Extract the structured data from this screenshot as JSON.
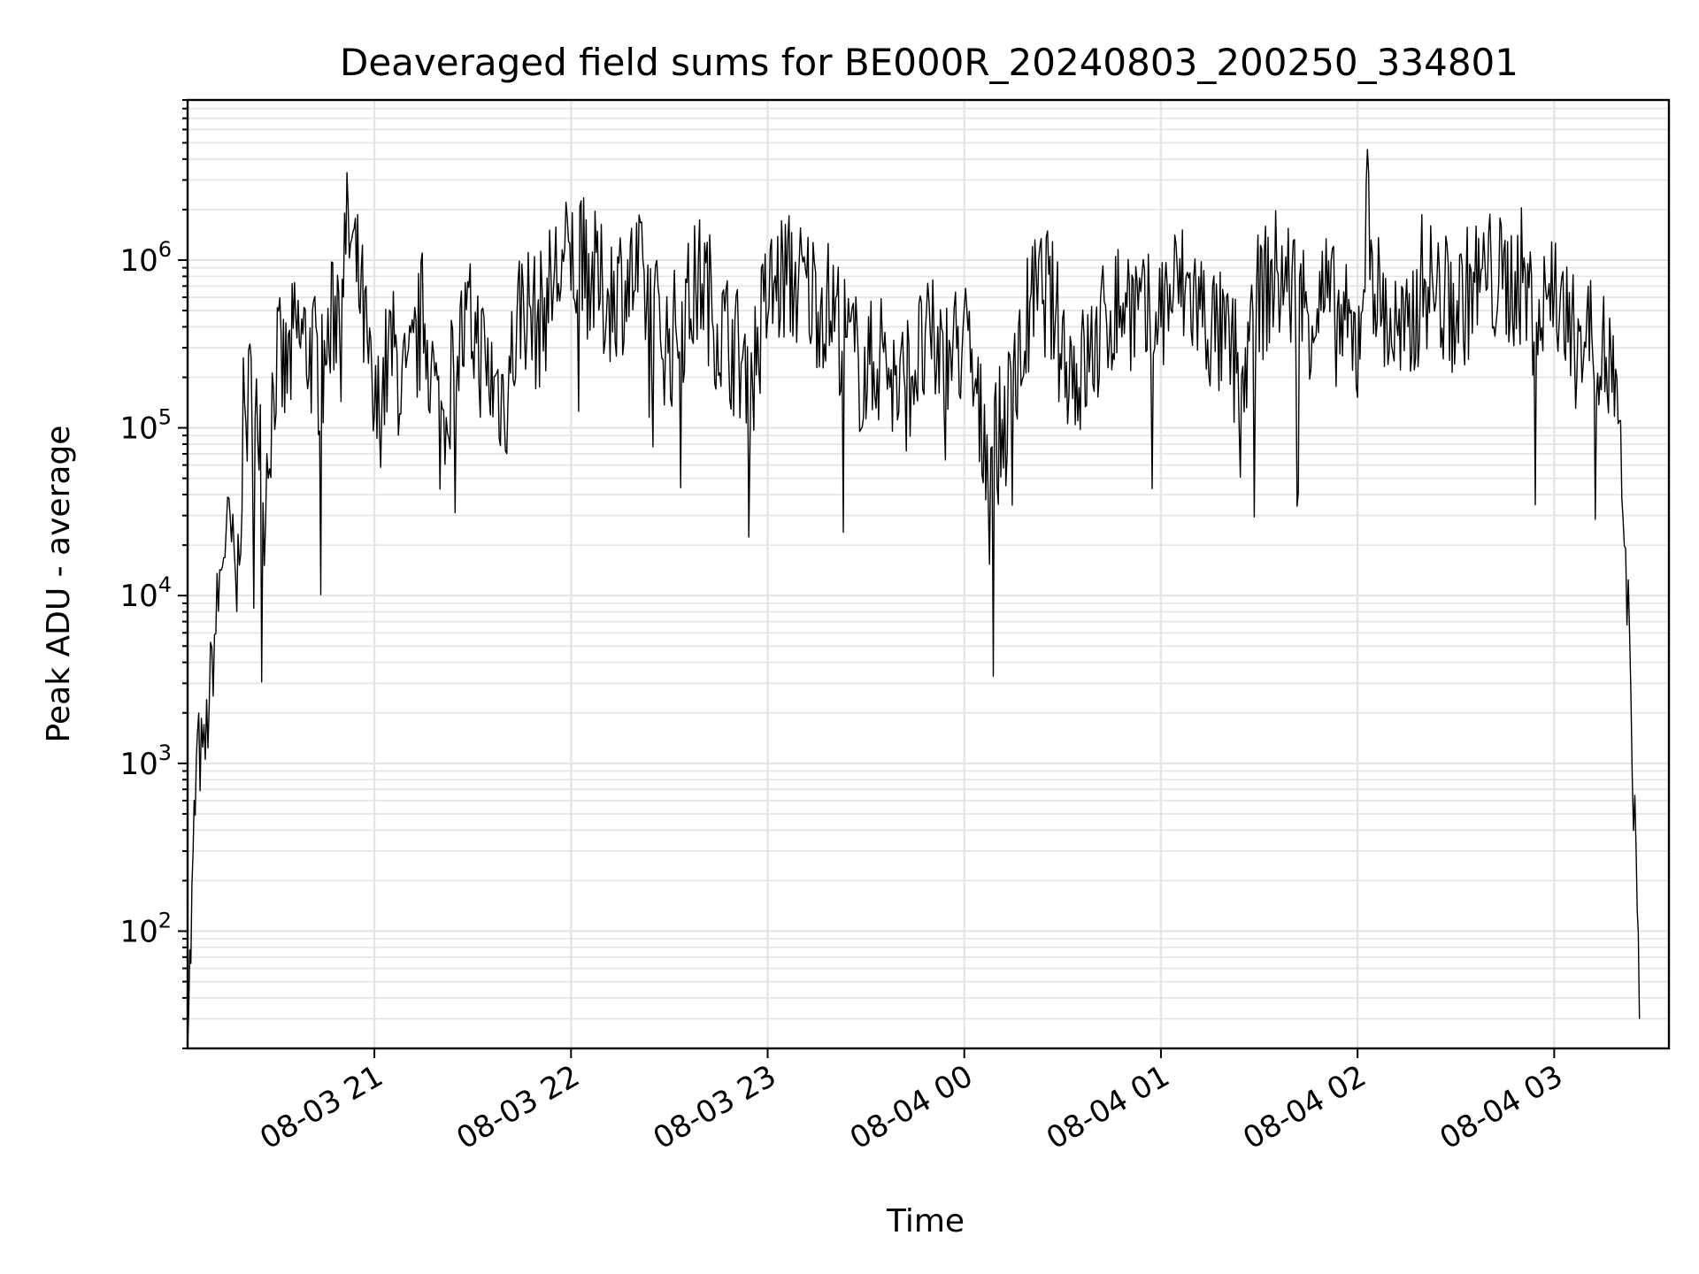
{
  "chart_data": {
    "type": "line",
    "title": "Deaveraged field sums for BE000R_20240803_200250_334801",
    "xlabel": "Time",
    "ylabel": "Peak ADU - average",
    "yscale": "log",
    "ylim": [
      20,
      9000000
    ],
    "xlim": [
      "2024-08-03 20:03",
      "2024-08-04 03:35"
    ],
    "grid": true,
    "grid_minor": true,
    "y_ticks": [
      {
        "value": 100,
        "base": "10",
        "exp": "2"
      },
      {
        "value": 1000,
        "base": "10",
        "exp": "3"
      },
      {
        "value": 10000,
        "base": "10",
        "exp": "4"
      },
      {
        "value": 100000,
        "base": "10",
        "exp": "5"
      },
      {
        "value": 1000000,
        "base": "10",
        "exp": "6"
      }
    ],
    "x_ticks": [
      {
        "time": "2024-08-03 21:00",
        "label": "08-03 21"
      },
      {
        "time": "2024-08-03 22:00",
        "label": "08-03 22"
      },
      {
        "time": "2024-08-03 23:00",
        "label": "08-03 23"
      },
      {
        "time": "2024-08-04 00:00",
        "label": "08-04 00"
      },
      {
        "time": "2024-08-04 01:00",
        "label": "08-04 01"
      },
      {
        "time": "2024-08-04 02:00",
        "label": "08-04 02"
      },
      {
        "time": "2024-08-04 03:00",
        "label": "08-04 03"
      }
    ],
    "series": [
      {
        "color": "#000000",
        "x": [
          "2024-08-03 20:03",
          "2024-08-03 20:04",
          "2024-08-03 20:05",
          "2024-08-03 20:06",
          "2024-08-03 20:08",
          "2024-08-03 20:10",
          "2024-08-03 20:12",
          "2024-08-03 20:14",
          "2024-08-03 20:16",
          "2024-08-03 20:18",
          "2024-08-03 20:20",
          "2024-08-03 20:22",
          "2024-08-03 20:24",
          "2024-08-03 20:26",
          "2024-08-03 20:28",
          "2024-08-03 20:30",
          "2024-08-03 20:33",
          "2024-08-03 20:36",
          "2024-08-03 20:40",
          "2024-08-03 20:44",
          "2024-08-03 20:48",
          "2024-08-03 20:52",
          "2024-08-03 20:56",
          "2024-08-03 21:00",
          "2024-08-03 21:05",
          "2024-08-03 21:10",
          "2024-08-03 21:15",
          "2024-08-03 21:20",
          "2024-08-03 21:25",
          "2024-08-03 21:30",
          "2024-08-03 21:35",
          "2024-08-03 21:40",
          "2024-08-03 21:45",
          "2024-08-03 21:50",
          "2024-08-03 21:55",
          "2024-08-03 22:00",
          "2024-08-03 22:05",
          "2024-08-03 22:10",
          "2024-08-03 22:15",
          "2024-08-03 22:20",
          "2024-08-03 22:25",
          "2024-08-03 22:30",
          "2024-08-03 22:35",
          "2024-08-03 22:40",
          "2024-08-03 22:45",
          "2024-08-03 22:50",
          "2024-08-03 22:55",
          "2024-08-03 23:00",
          "2024-08-03 23:05",
          "2024-08-03 23:10",
          "2024-08-03 23:15",
          "2024-08-03 23:20",
          "2024-08-03 23:25",
          "2024-08-03 23:30",
          "2024-08-03 23:35",
          "2024-08-03 23:40",
          "2024-08-03 23:45",
          "2024-08-03 23:50",
          "2024-08-03 23:55",
          "2024-08-04 00:00",
          "2024-08-04 00:05",
          "2024-08-04 00:10",
          "2024-08-04 00:15",
          "2024-08-04 00:20",
          "2024-08-04 00:25",
          "2024-08-04 00:30",
          "2024-08-04 00:35",
          "2024-08-04 00:40",
          "2024-08-04 00:45",
          "2024-08-04 00:50",
          "2024-08-04 00:55",
          "2024-08-04 01:00",
          "2024-08-04 01:05",
          "2024-08-04 01:10",
          "2024-08-04 01:15",
          "2024-08-04 01:20",
          "2024-08-04 01:25",
          "2024-08-04 01:30",
          "2024-08-04 01:35",
          "2024-08-04 01:40",
          "2024-08-04 01:45",
          "2024-08-04 01:50",
          "2024-08-04 01:55",
          "2024-08-04 02:00",
          "2024-08-04 02:03",
          "2024-08-04 02:06",
          "2024-08-04 02:10",
          "2024-08-04 02:15",
          "2024-08-04 02:20",
          "2024-08-04 02:25",
          "2024-08-04 02:30",
          "2024-08-04 02:35",
          "2024-08-04 02:40",
          "2024-08-04 02:45",
          "2024-08-04 02:50",
          "2024-08-04 02:55",
          "2024-08-04 03:00",
          "2024-08-04 03:05",
          "2024-08-04 03:10",
          "2024-08-04 03:14",
          "2024-08-04 03:18",
          "2024-08-04 03:21",
          "2024-08-04 03:23",
          "2024-08-04 03:25",
          "2024-08-04 03:26"
        ],
        "y": [
          30,
          80,
          400,
          1200,
          1000,
          3000,
          8000,
          20000,
          25000,
          10000,
          100000,
          150000,
          200000,
          30000,
          100000,
          250000,
          200000,
          350000,
          300000,
          200000,
          500000,
          1500000,
          600000,
          100000,
          300000,
          150000,
          500000,
          100000,
          300000,
          400000,
          200000,
          150000,
          600000,
          400000,
          800000,
          1000000,
          900000,
          600000,
          700000,
          800000,
          500000,
          300000,
          500000,
          800000,
          400000,
          300000,
          200000,
          600000,
          800000,
          700000,
          600000,
          500000,
          300000,
          200000,
          300000,
          150000,
          250000,
          300000,
          250000,
          350000,
          100000,
          80000,
          150000,
          500000,
          700000,
          300000,
          200000,
          300000,
          500000,
          600000,
          400000,
          500000,
          700000,
          600000,
          400000,
          300000,
          200000,
          600000,
          800000,
          700000,
          500000,
          600000,
          400000,
          300000,
          2000000,
          600000,
          400000,
          300000,
          800000,
          600000,
          500000,
          700000,
          800000,
          700000,
          800000,
          400000,
          800000,
          300000,
          400000,
          300000,
          200000,
          30000,
          5000,
          200,
          30
        ]
      }
    ]
  }
}
